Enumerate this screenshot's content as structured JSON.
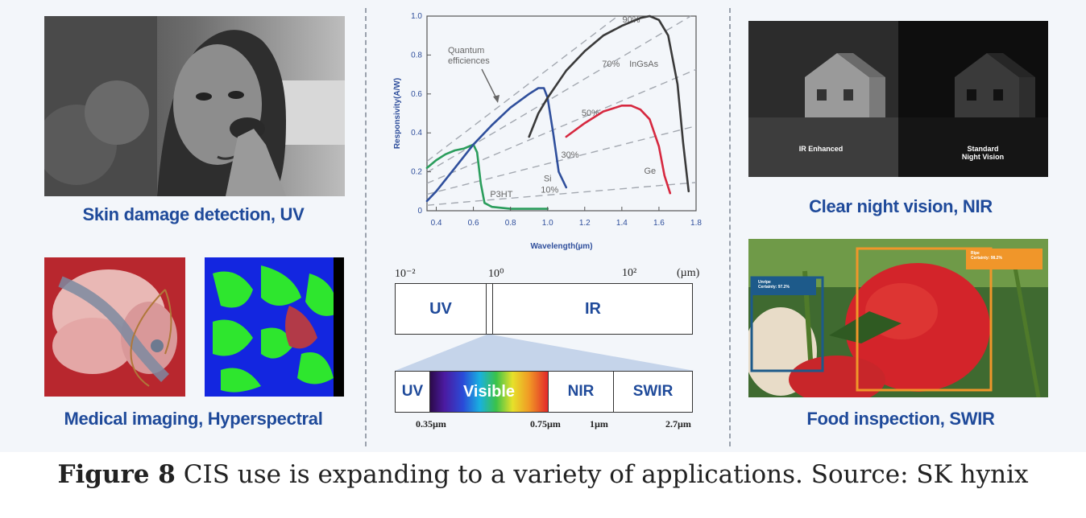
{
  "left": {
    "skin_label": "Skin damage detection, UV",
    "medical_label": "Medical imaging, Hyperspectral"
  },
  "right": {
    "night_label": "Clear night vision, NIR",
    "night_overlay_left": "IR Enhanced",
    "night_overlay_right": "Standard\nNight Vision",
    "food_label": "Food inspection, SWIR",
    "food_box_unripe": "Unripe\nCertainty: 97.2%",
    "food_box_ripe": "Ripe\nCertainty: 98.2%"
  },
  "chart_data": {
    "type": "line",
    "xlabel": "Wavelength(µm)",
    "ylabel": "Responsivity(A/W)",
    "xlim": [
      0.35,
      1.8
    ],
    "ylim": [
      0,
      1.0
    ],
    "xticks": [
      "0.4",
      "0.6",
      "0.8",
      "1.0",
      "1.2",
      "1.4",
      "1.6",
      "1.8"
    ],
    "yticks": [
      "0",
      "0.2",
      "0.4",
      "0.6",
      "0.8",
      "1.0"
    ],
    "annotation": "Quantum\nefficiences",
    "quantum_efficiency_lines": [
      {
        "label": "10%",
        "qe": 0.1
      },
      {
        "label": "30%",
        "qe": 0.3
      },
      {
        "label": "50%",
        "qe": 0.5
      },
      {
        "label": "70%",
        "qe": 0.7
      },
      {
        "label": "90%",
        "qe": 0.9
      }
    ],
    "series": [
      {
        "name": "P3HT",
        "color": "#2a9d5c",
        "x": [
          0.35,
          0.4,
          0.45,
          0.5,
          0.55,
          0.6,
          0.62,
          0.64,
          0.66,
          0.7,
          0.8,
          0.9,
          1.0
        ],
        "y": [
          0.22,
          0.26,
          0.29,
          0.31,
          0.32,
          0.34,
          0.3,
          0.14,
          0.04,
          0.02,
          0.01,
          0.01,
          0.01
        ]
      },
      {
        "name": "Si",
        "color": "#2f4f9c",
        "x": [
          0.35,
          0.4,
          0.5,
          0.6,
          0.7,
          0.8,
          0.9,
          0.95,
          0.98,
          1.0,
          1.03,
          1.06,
          1.1
        ],
        "y": [
          0.05,
          0.1,
          0.22,
          0.34,
          0.44,
          0.53,
          0.6,
          0.63,
          0.63,
          0.58,
          0.4,
          0.2,
          0.12
        ]
      },
      {
        "name": "InGsAs",
        "color": "#3a3a3a",
        "x": [
          0.9,
          0.95,
          1.0,
          1.1,
          1.2,
          1.3,
          1.4,
          1.5,
          1.55,
          1.6,
          1.65,
          1.7,
          1.73,
          1.76
        ],
        "y": [
          0.38,
          0.5,
          0.58,
          0.72,
          0.82,
          0.9,
          0.95,
          0.99,
          1.0,
          0.98,
          0.9,
          0.65,
          0.35,
          0.1
        ]
      },
      {
        "name": "Ge",
        "color": "#d6283f",
        "x": [
          1.1,
          1.2,
          1.3,
          1.4,
          1.45,
          1.5,
          1.55,
          1.6,
          1.63,
          1.66
        ],
        "y": [
          0.38,
          0.45,
          0.51,
          0.54,
          0.54,
          0.52,
          0.47,
          0.33,
          0.18,
          0.09
        ]
      }
    ]
  },
  "spectrum_scale": {
    "ticks": [
      "10⁻²",
      "10⁰",
      "10²",
      "(µm)"
    ],
    "bands": [
      "UV",
      "IR"
    ],
    "detail_bands": [
      "UV",
      "Visible",
      "NIR",
      "SWIR"
    ],
    "detail_ticks": [
      "0.35µm",
      "0.75µm",
      "1µm",
      "2.7µm"
    ]
  },
  "caption": {
    "label": "Figure 8",
    "text": " CIS use is expanding to a variety of applications. Source: SK hynix"
  },
  "colors": {
    "label_blue": "#1f4a9a",
    "panel_bg": "#f3f6fa",
    "band_border": "#333333"
  }
}
